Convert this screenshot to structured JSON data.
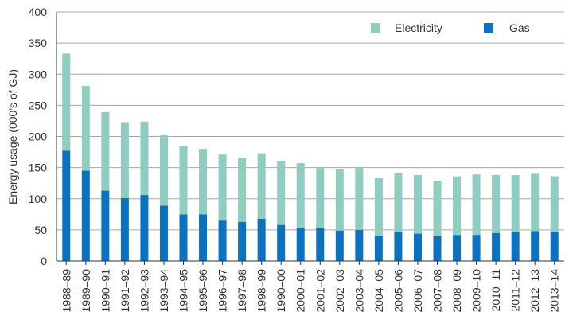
{
  "chart_data": {
    "type": "bar",
    "stacked": true,
    "title": "",
    "xlabel": "",
    "ylabel": "Energy usage (000's of GJ)",
    "ylim": [
      0,
      400
    ],
    "yticks": [
      0,
      50,
      100,
      150,
      200,
      250,
      300,
      350,
      400
    ],
    "grid": true,
    "legend_position": "top-right",
    "categories": [
      "1988–89",
      "1989–90",
      "1990–91",
      "1991–92",
      "1992–93",
      "1993–94",
      "1994–95",
      "1995–96",
      "1996–97",
      "1997–98",
      "1998–99",
      "1990–00",
      "2000–01",
      "2001–02",
      "2002–03",
      "2003–04",
      "2004–05",
      "2005–06",
      "2006–07",
      "2007–08",
      "2008–09",
      "2009–10",
      "2010–11",
      "2011–12",
      "2012–13",
      "2013–14"
    ],
    "series": [
      {
        "name": "Gas",
        "color": "#0a72c1",
        "values": [
          177,
          145,
          113,
          101,
          106,
          89,
          75,
          75,
          65,
          63,
          68,
          58,
          53,
          53,
          49,
          50,
          41,
          46,
          44,
          40,
          42,
          42,
          45,
          47,
          48,
          47
        ]
      },
      {
        "name": "Electricity",
        "color": "#8ecdbf",
        "values": [
          156,
          136,
          126,
          122,
          118,
          113,
          109,
          105,
          106,
          103,
          105,
          103,
          104,
          98,
          98,
          101,
          92,
          95,
          94,
          89,
          94,
          97,
          93,
          91,
          92,
          89
        ]
      }
    ]
  },
  "legend": {
    "electricity_label": "Electricity",
    "gas_label": "Gas"
  }
}
